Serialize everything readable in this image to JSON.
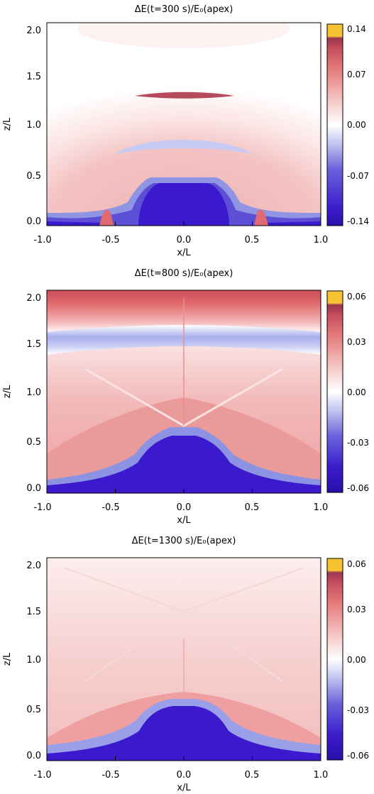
{
  "chart_data": [
    {
      "type": "heatmap",
      "title": "ΔE(t=300 s)/E₀(apex)",
      "xlabel": "x/L",
      "ylabel": "z/L",
      "xlim": [
        -1.0,
        1.0
      ],
      "ylim": [
        -0.05,
        2.05
      ],
      "xticks": [
        "-1.0",
        "-0.5",
        "0.0",
        "0.5",
        "1.0"
      ],
      "yticks": [
        "0.0",
        "0.5",
        "1.0",
        "1.5",
        "2.0"
      ],
      "colorbar": {
        "range": [
          -0.14,
          0.14
        ],
        "ticks": [
          "0.14",
          "0.07",
          "0.00",
          "-0.07",
          "-0.14"
        ]
      }
    },
    {
      "type": "heatmap",
      "title": "ΔE(t=800 s)/E₀(apex)",
      "xlabel": "x/L",
      "ylabel": "z/L",
      "xlim": [
        -1.0,
        1.0
      ],
      "ylim": [
        -0.05,
        2.05
      ],
      "xticks": [
        "-1.0",
        "-0.5",
        "0.0",
        "0.5",
        "1.0"
      ],
      "yticks": [
        "0.0",
        "0.5",
        "1.0",
        "1.5",
        "2.0"
      ],
      "colorbar": {
        "range": [
          -0.06,
          0.06
        ],
        "ticks": [
          "0.06",
          "0.03",
          "0.00",
          "-0.03",
          "-0.06"
        ]
      }
    },
    {
      "type": "heatmap",
      "title": "ΔE(t=1300 s)/E₀(apex)",
      "xlabel": "x/L",
      "ylabel": "z/L",
      "xlim": [
        -1.0,
        1.0
      ],
      "ylim": [
        -0.05,
        2.05
      ],
      "xticks": [
        "-1.0",
        "-0.5",
        "0.0",
        "0.5",
        "1.0"
      ],
      "yticks": [
        "0.0",
        "0.5",
        "1.0",
        "1.5",
        "2.0"
      ],
      "colorbar": {
        "range": [
          -0.06,
          0.06
        ],
        "ticks": [
          "0.06",
          "0.03",
          "0.00",
          "-0.03",
          "-0.06"
        ]
      }
    }
  ],
  "colors": {
    "deep_blue": "#3a1acc",
    "light_blue": "#b8bff0",
    "white": "#ffffff",
    "light_red": "#f2b0b0",
    "red": "#dd6a6a",
    "dark_red": "#a83a52",
    "gold": "#f6c431"
  }
}
